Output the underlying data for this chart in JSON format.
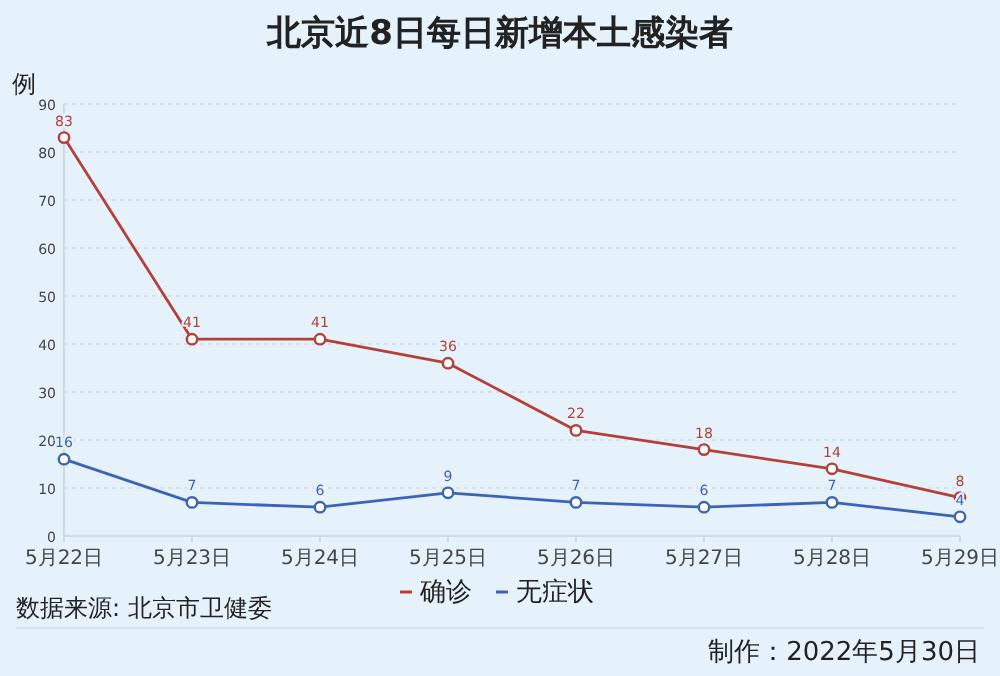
{
  "chart_data": {
    "type": "line",
    "title": "北京近8日每日新增本土感染者",
    "ylabel": "例",
    "categories": [
      "5月22日",
      "5月23日",
      "5月24日",
      "5月25日",
      "5月26日",
      "5月27日",
      "5月28日",
      "5月29日"
    ],
    "series": [
      {
        "name": "确诊",
        "color": "#b5403a",
        "values": [
          83,
          41,
          41,
          36,
          22,
          18,
          14,
          8
        ]
      },
      {
        "name": "无症状",
        "color": "#3d63b8",
        "values": [
          16,
          7,
          6,
          9,
          7,
          6,
          7,
          4
        ]
      }
    ],
    "ylim": [
      0,
      90
    ],
    "yticks": [
      0,
      10,
      20,
      30,
      40,
      50,
      60,
      70,
      80,
      90
    ],
    "grid": "y",
    "marker": "circle",
    "legend": "bottom",
    "data_labels": true,
    "annotations": [
      "数据来源: 北京市卫健委",
      "制作：2022年5月30日"
    ]
  }
}
